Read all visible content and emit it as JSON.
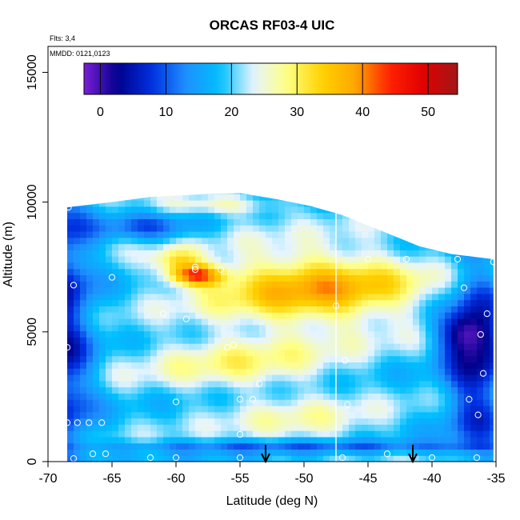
{
  "chart_data": {
    "type": "heatmap",
    "title": "ORCAS RF03-4 UIC",
    "notes": [
      "Flts: 3,4",
      "MMDD: 0121,0123"
    ],
    "xlabel": "Latitude (deg N)",
    "ylabel": "Altitude (m)",
    "xlim": [
      -70,
      -35
    ],
    "ylim": [
      0,
      16000
    ],
    "x_ticks": [
      -70,
      -65,
      -60,
      -55,
      -50,
      -45,
      -40,
      -35
    ],
    "y_ticks": [
      0,
      5000,
      10000,
      15000
    ],
    "colorbar": {
      "ticks": [
        0,
        10,
        20,
        30,
        40,
        50
      ],
      "range": [
        -2.5,
        54.5
      ],
      "colors": [
        "#7a1fd6",
        "#00008b",
        "#0030e0",
        "#1e90ff",
        "#00bfff",
        "#e6f4ff",
        "#ffff80",
        "#ffd200",
        "#ffa500",
        "#ff2000",
        "#e00000",
        "#a01818"
      ]
    },
    "divider_latitude": -47.5,
    "sounding_markers_latitude": [
      -53,
      -41.5
    ],
    "top_boundary": [
      [
        -68.5,
        9800
      ],
      [
        -65,
        10000
      ],
      [
        -62,
        10200
      ],
      [
        -58,
        10300
      ],
      [
        -55,
        10350
      ],
      [
        -52,
        10100
      ],
      [
        -49.5,
        9850
      ],
      [
        -47,
        9500
      ],
      [
        -44,
        8900
      ],
      [
        -41,
        8300
      ],
      [
        -38.5,
        8000
      ],
      [
        -35.2,
        7800
      ]
    ],
    "sample_points": [
      [
        -69,
        150
      ],
      [
        -68,
        120
      ],
      [
        -66.5,
        300
      ],
      [
        -65.5,
        300
      ],
      [
        -62,
        150
      ],
      [
        -60,
        150
      ],
      [
        -55,
        150
      ],
      [
        -47,
        150
      ],
      [
        -43.5,
        300
      ],
      [
        -40,
        150
      ],
      [
        -36.5,
        150
      ],
      [
        -68.8,
        1900
      ],
      [
        -68.5,
        1500
      ],
      [
        -67.7,
        1500
      ],
      [
        -66.8,
        1500
      ],
      [
        -65.8,
        1500
      ],
      [
        -60,
        2300
      ],
      [
        -55,
        2400
      ],
      [
        -54,
        2400
      ],
      [
        -53.5,
        3000
      ],
      [
        -46.6,
        2200
      ],
      [
        -37.1,
        2400
      ],
      [
        -36.4,
        1800
      ],
      [
        -55,
        1050
      ],
      [
        -68.5,
        4400
      ],
      [
        -56,
        4400
      ],
      [
        -55.5,
        4500
      ],
      [
        -46.8,
        3900
      ],
      [
        -36,
        3400
      ],
      [
        -61,
        5700
      ],
      [
        -59.2,
        5500
      ],
      [
        -47.5,
        6000
      ],
      [
        -65,
        7100
      ],
      [
        -58.5,
        7400
      ],
      [
        -37.5,
        6700
      ],
      [
        -35.7,
        5700
      ],
      [
        -36.2,
        4900
      ],
      [
        -68,
        6800
      ],
      [
        -58.5,
        7500
      ],
      [
        -56.5,
        7400
      ],
      [
        -45,
        7800
      ],
      [
        -42,
        7800
      ],
      [
        -38,
        7800
      ],
      [
        -35.2,
        7700
      ],
      [
        -68.4,
        9800
      ]
    ]
  }
}
